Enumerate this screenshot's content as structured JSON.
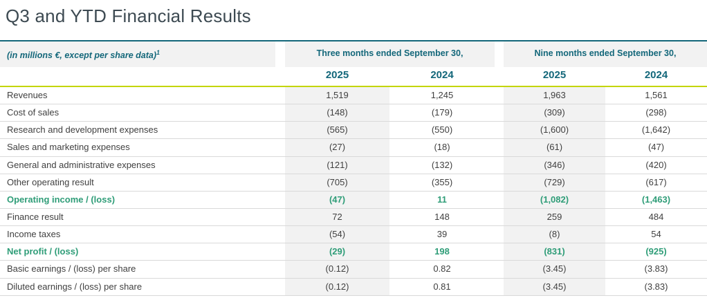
{
  "page": {
    "title": "Q3 and YTD Financial Results"
  },
  "table": {
    "note": "(in millions €, except per share data)",
    "note_sup": "1",
    "col_groups": [
      {
        "label": "Three months ended September 30,"
      },
      {
        "label": "Nine months ended September 30,"
      }
    ],
    "year_headers": [
      "2025",
      "2024",
      "2025",
      "2024"
    ],
    "rows": [
      {
        "label": "Revenues",
        "v1": "1,519",
        "v2": "1,245",
        "v3": "1,963",
        "v4": "1,561",
        "highlight": false
      },
      {
        "label": "Cost of sales",
        "v1": "(148)",
        "v2": "(179)",
        "v3": "(309)",
        "v4": "(298)",
        "highlight": false
      },
      {
        "label": "Research and development expenses",
        "v1": "(565)",
        "v2": "(550)",
        "v3": "(1,600)",
        "v4": "(1,642)",
        "highlight": false
      },
      {
        "label": "Sales and marketing expenses",
        "v1": "(27)",
        "v2": "(18)",
        "v3": "(61)",
        "v4": "(47)",
        "highlight": false
      },
      {
        "label": "General and administrative expenses",
        "v1": "(121)",
        "v2": "(132)",
        "v3": "(346)",
        "v4": "(420)",
        "highlight": false
      },
      {
        "label": "Other operating result",
        "v1": "(705)",
        "v2": "(355)",
        "v3": "(729)",
        "v4": "(617)",
        "highlight": false
      },
      {
        "label": "Operating income / (loss)",
        "v1": "(47)",
        "v2": "11",
        "v3": "(1,082)",
        "v4": "(1,463)",
        "highlight": true
      },
      {
        "label": "Finance result",
        "v1": "72",
        "v2": "148",
        "v3": "259",
        "v4": "484",
        "highlight": false
      },
      {
        "label": "Income taxes",
        "v1": "(54)",
        "v2": "39",
        "v3": "(8)",
        "v4": "54",
        "highlight": false
      },
      {
        "label": "Net profit / (loss)",
        "v1": "(29)",
        "v2": "198",
        "v3": "(831)",
        "v4": "(925)",
        "highlight": true
      },
      {
        "label": "Basic earnings / (loss) per share",
        "v1": "(0.12)",
        "v2": "0.82",
        "v3": "(3.45)",
        "v4": "(3.83)",
        "highlight": false
      },
      {
        "label": "Diluted earnings / (loss) per share",
        "v1": "(0.12)",
        "v2": "0.81",
        "v3": "(3.45)",
        "v4": "(3.83)",
        "highlight": false
      }
    ]
  },
  "colors": {
    "teal": "#13677a",
    "lime": "#c3d500",
    "green_highlight": "#2f9d78",
    "column_band": "#f2f2f2",
    "title_text": "#3d4a52",
    "body_text": "#3f3f3f",
    "row_divider": "#d9d9d9"
  }
}
